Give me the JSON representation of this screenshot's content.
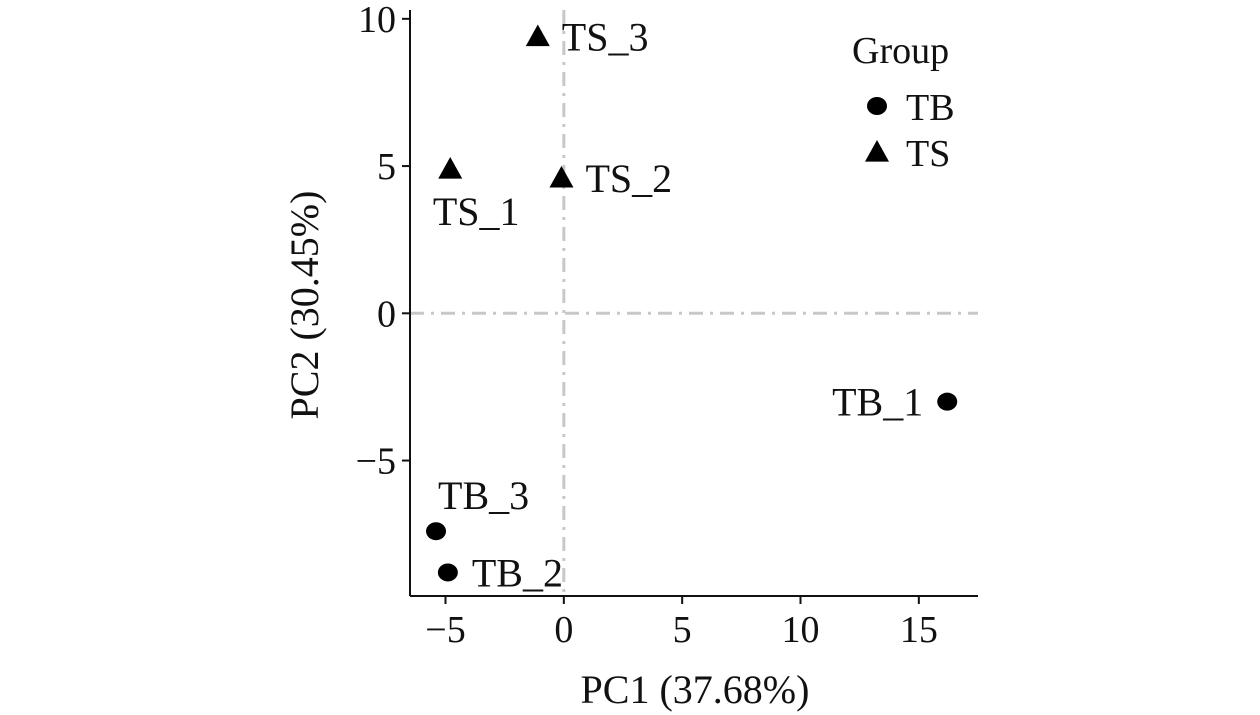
{
  "chart_data": {
    "type": "scatter",
    "title": "",
    "xlabel": "PC1 (37.68%)",
    "ylabel": "PC2 (30.45%)",
    "xlim": [
      -6.5,
      17.5
    ],
    "ylim": [
      -9.6,
      10.3
    ],
    "xticks": [
      -5,
      0,
      5,
      10,
      15
    ],
    "yticks": [
      -5,
      0,
      5,
      10
    ],
    "xtick_labels": [
      "−5",
      "0",
      "5",
      "10",
      "15"
    ],
    "ytick_labels": [
      "−5",
      "0",
      "5",
      "10"
    ],
    "grid": false,
    "reference_lines": {
      "x": 0,
      "y": 0,
      "style": "dash-dot",
      "color": "#c8c8c8"
    },
    "legend": {
      "title": "Group",
      "position": "top-right",
      "entries": [
        {
          "label": "TB",
          "marker": "circle"
        },
        {
          "label": "TS",
          "marker": "triangle"
        }
      ]
    },
    "series": [
      {
        "name": "TB",
        "marker": "circle",
        "points": [
          {
            "label": "TB_1",
            "x": 16.2,
            "y": -3.0,
            "label_side": "left"
          },
          {
            "label": "TB_2",
            "x": -4.9,
            "y": -8.8,
            "label_side": "right"
          },
          {
            "label": "TB_3",
            "x": -5.4,
            "y": -7.4,
            "label_side": "above"
          }
        ]
      },
      {
        "name": "TS",
        "marker": "triangle",
        "points": [
          {
            "label": "TS_1",
            "x": -4.8,
            "y": 4.9,
            "label_side": "below"
          },
          {
            "label": "TS_2",
            "x": -0.1,
            "y": 4.6,
            "label_side": "right"
          },
          {
            "label": "TS_3",
            "x": -1.1,
            "y": 9.4,
            "label_side": "right"
          }
        ]
      }
    ],
    "marker_color": "#000000"
  }
}
